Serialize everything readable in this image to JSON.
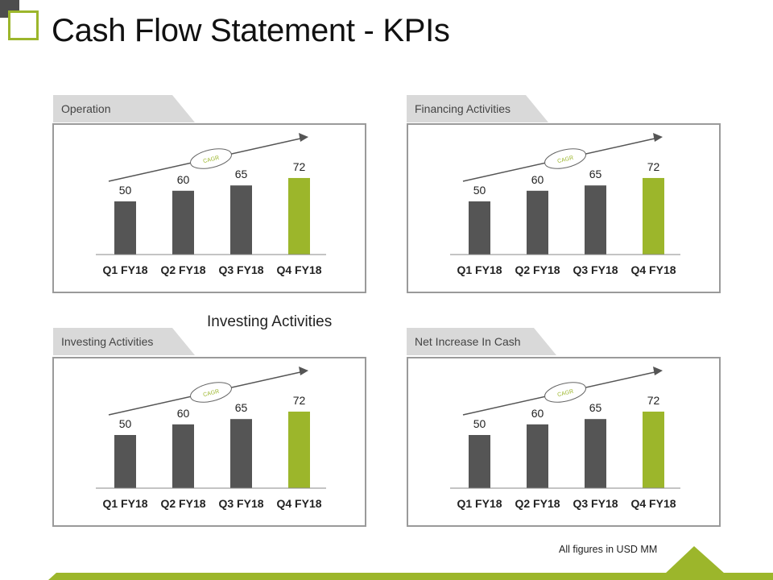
{
  "title": "Cash Flow Statement - KPIs",
  "mid_label": "Investing Activities",
  "footnote": "All figures in USD  MM",
  "colors": {
    "bar": "#555555",
    "highlight": "#9cb62b",
    "tab": "#d9d9d9",
    "border": "#9a9a9a"
  },
  "charts": [
    {
      "tab": "Operation"
    },
    {
      "tab": "Financing Activities"
    },
    {
      "tab": "Investing  Activities"
    },
    {
      "tab": "Net Increase In Cash"
    }
  ],
  "chart_data": [
    {
      "type": "bar",
      "categories": [
        "Q1 FY18",
        "Q2 FY18",
        "Q3 FY18",
        "Q4 FY18"
      ],
      "values": [
        50,
        60,
        65,
        72
      ],
      "highlight_index": 3,
      "annotation": "CAGR"
    },
    {
      "type": "bar",
      "categories": [
        "Q1 FY18",
        "Q2 FY18",
        "Q3 FY18",
        "Q4 FY18"
      ],
      "values": [
        50,
        60,
        65,
        72
      ],
      "highlight_index": 3,
      "annotation": "CAGR"
    },
    {
      "type": "bar",
      "categories": [
        "Q1 FY18",
        "Q2 FY18",
        "Q3 FY18",
        "Q4 FY18"
      ],
      "values": [
        50,
        60,
        65,
        72
      ],
      "highlight_index": 3,
      "annotation": "CAGR"
    },
    {
      "type": "bar",
      "categories": [
        "Q1 FY18",
        "Q2 FY18",
        "Q3 FY18",
        "Q4 FY18"
      ],
      "values": [
        50,
        60,
        65,
        72
      ],
      "highlight_index": 3,
      "annotation": "CAGR"
    }
  ]
}
